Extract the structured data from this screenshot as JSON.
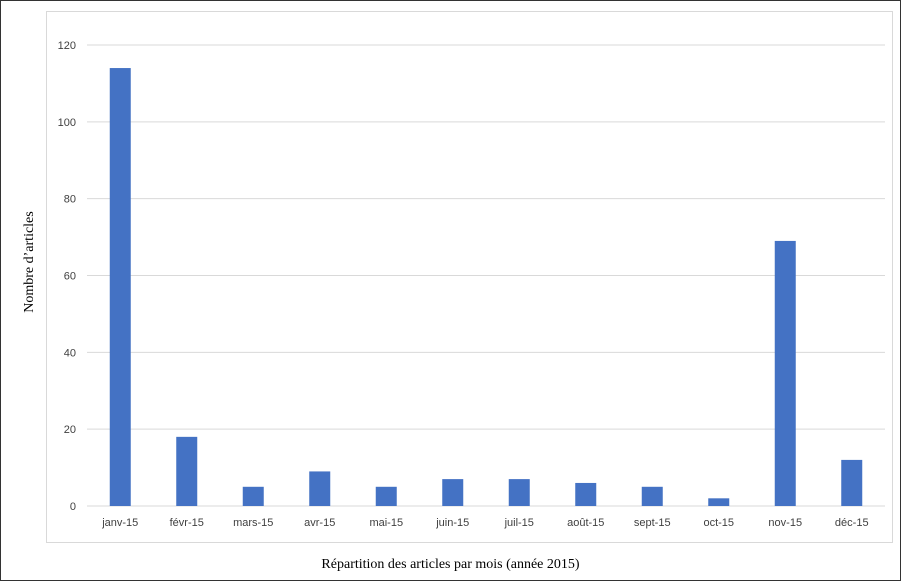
{
  "chart_data": {
    "type": "bar",
    "categories": [
      "janv-15",
      "févr-15",
      "mars-15",
      "avr-15",
      "mai-15",
      "juin-15",
      "juil-15",
      "août-15",
      "sept-15",
      "oct-15",
      "nov-15",
      "déc-15"
    ],
    "values": [
      114,
      18,
      5,
      9,
      5,
      7,
      7,
      6,
      5,
      2,
      69,
      12
    ],
    "ylabel": "Nombre d’articles",
    "xlabel": "Répartition des articles par mois (année 2015)",
    "ylim": [
      0,
      120
    ],
    "yticks": [
      0,
      20,
      40,
      60,
      80,
      100,
      120
    ],
    "grid": true,
    "bar_color": "#4472c4",
    "grid_color": "#d9d9d9"
  }
}
